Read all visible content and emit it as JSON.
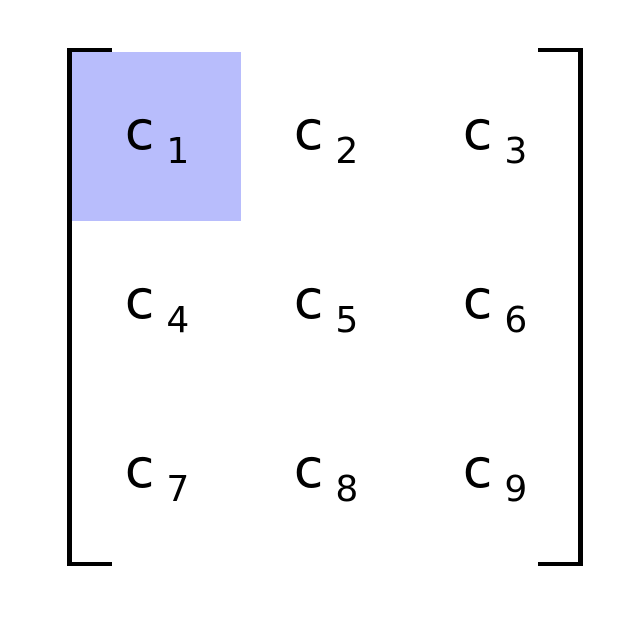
{
  "matrix": {
    "highlight_color": "#b8bdfc",
    "highlighted_cell_index": 0,
    "cells": [
      {
        "symbol": "c",
        "index": "1"
      },
      {
        "symbol": "c",
        "index": "2"
      },
      {
        "symbol": "c",
        "index": "3"
      },
      {
        "symbol": "c",
        "index": "4"
      },
      {
        "symbol": "c",
        "index": "5"
      },
      {
        "symbol": "c",
        "index": "6"
      },
      {
        "symbol": "c",
        "index": "7"
      },
      {
        "symbol": "c",
        "index": "8"
      },
      {
        "symbol": "c",
        "index": "9"
      }
    ]
  }
}
